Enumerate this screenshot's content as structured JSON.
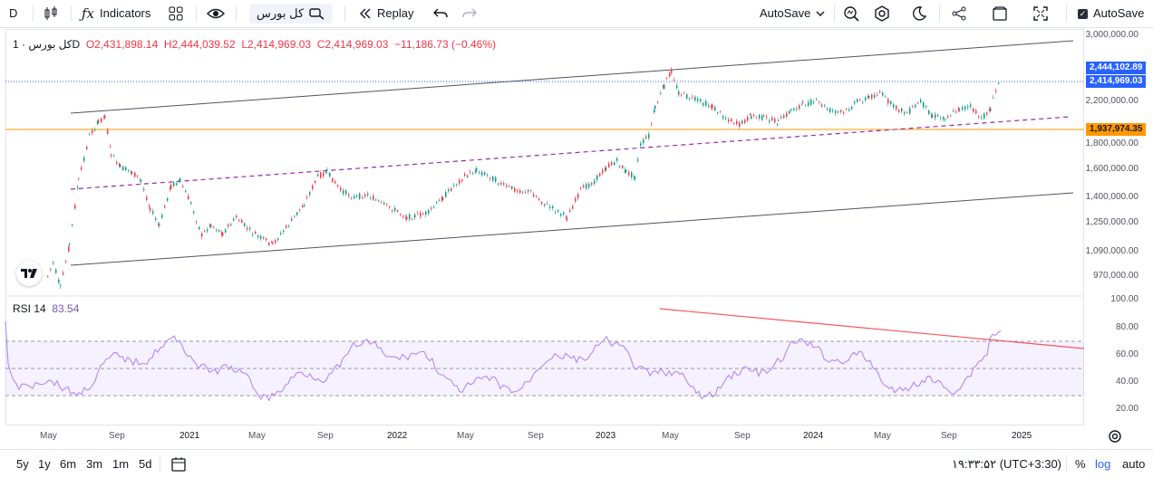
{
  "toolbar": {
    "interval": "D",
    "indicators_label": "Indicators",
    "symbol_search_label": "کل بورس",
    "replay_label": "Replay",
    "autosave_dropdown_label": "AutoSave",
    "autosave_checkbox_label": "AutoSave"
  },
  "legend": {
    "symbol": "کل بورس",
    "interval": "1D",
    "open": "O2,431,898.14",
    "high": "H2,444,039.52",
    "low": "L2,414,969.03",
    "close": "C2,414,969.03",
    "change": "−11,186.73 (−0.46%)",
    "rsi_name": "RSI 14",
    "rsi_value": "83.54"
  },
  "price_axis": {
    "ticks": [
      "3,000,000.00",
      "2,200,000.00",
      "1,800,000.00",
      "1,600,000.00",
      "1,400,000.00",
      "1,250,000.00",
      "1,090,000.00",
      "970,000.00"
    ],
    "labels": {
      "high": "2,444,102.89",
      "last": "2,414,969.03",
      "line": "1,937,974.35"
    }
  },
  "rsi_axis": {
    "ticks": [
      "100.00",
      "80.00",
      "60.00",
      "40.00",
      "20.00"
    ]
  },
  "time_axis": {
    "ticks": [
      "May",
      "Sep",
      "2021",
      "May",
      "Sep",
      "2022",
      "May",
      "Sep",
      "2023",
      "May",
      "Sep",
      "2024",
      "May",
      "Sep",
      "2025"
    ]
  },
  "bottombar": {
    "ranges": [
      "5y",
      "1y",
      "6m",
      "3m",
      "1m",
      "5d"
    ],
    "clock": "۱۹:۳۳:۵۲ (UTC+3:30)",
    "percent": "%",
    "log": "log",
    "auto": "auto"
  },
  "colors": {
    "up": "#089981",
    "down": "#f23645",
    "rsi": "#b388f5",
    "accent": "#2962ff",
    "horizontal_line": "#ff9800",
    "midline": "#9c27b0",
    "trendline": "#f7525f"
  }
}
